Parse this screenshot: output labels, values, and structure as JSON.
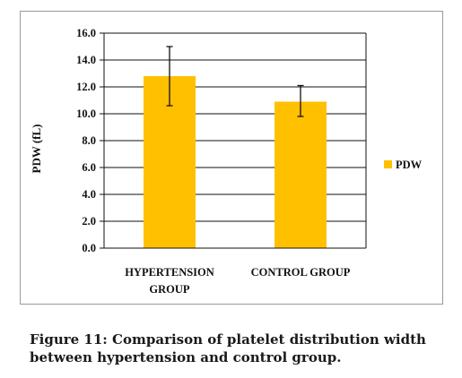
{
  "chart_data": {
    "type": "bar",
    "categories": [
      [
        "HYPERTENSION",
        "GROUP"
      ],
      [
        "CONTROL GROUP"
      ]
    ],
    "series": [
      {
        "name": "PDW",
        "values": [
          12.8,
          10.9
        ],
        "error_low": [
          10.6,
          9.8
        ],
        "error_high": [
          15.0,
          12.1
        ]
      }
    ],
    "ylabel": "PDW (fL)",
    "xlabel": "",
    "ylim": [
      0,
      16
    ],
    "yticks": [
      "0.0",
      "2.0",
      "4.0",
      "6.0",
      "8.0",
      "10.0",
      "12.0",
      "14.0",
      "16.0"
    ],
    "grid": true,
    "legend": "right",
    "bar_color": "#ffc000"
  },
  "caption": {
    "line1": "Figure 11: Comparison of platelet distribution width",
    "line2": "between hypertension and control group."
  }
}
